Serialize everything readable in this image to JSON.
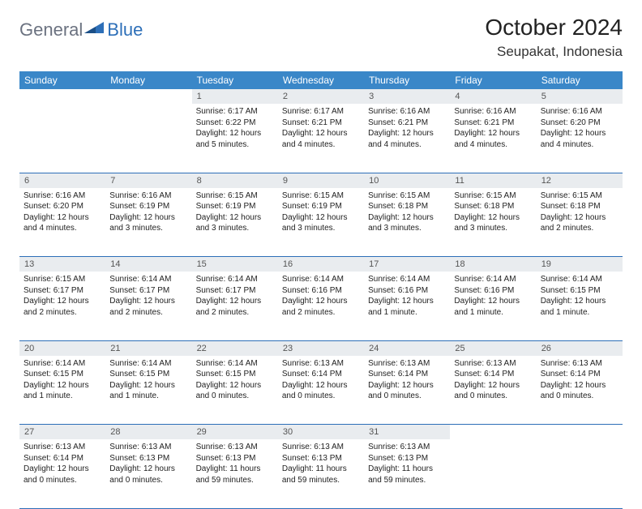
{
  "brand": {
    "part1": "General",
    "part2": "Blue"
  },
  "title": "October 2024",
  "location": "Seupakat, Indonesia",
  "colors": {
    "header_bg": "#3a87c8",
    "header_fg": "#ffffff",
    "daynum_bg": "#e9ecef",
    "rule": "#2d6fb8",
    "logo_gray": "#6b7280",
    "logo_blue": "#2d6fb8"
  },
  "weekdays": [
    "Sunday",
    "Monday",
    "Tuesday",
    "Wednesday",
    "Thursday",
    "Friday",
    "Saturday"
  ],
  "weeks": [
    [
      null,
      null,
      {
        "n": "1",
        "sr": "Sunrise: 6:17 AM",
        "ss": "Sunset: 6:22 PM",
        "d1": "Daylight: 12 hours",
        "d2": "and 5 minutes."
      },
      {
        "n": "2",
        "sr": "Sunrise: 6:17 AM",
        "ss": "Sunset: 6:21 PM",
        "d1": "Daylight: 12 hours",
        "d2": "and 4 minutes."
      },
      {
        "n": "3",
        "sr": "Sunrise: 6:16 AM",
        "ss": "Sunset: 6:21 PM",
        "d1": "Daylight: 12 hours",
        "d2": "and 4 minutes."
      },
      {
        "n": "4",
        "sr": "Sunrise: 6:16 AM",
        "ss": "Sunset: 6:21 PM",
        "d1": "Daylight: 12 hours",
        "d2": "and 4 minutes."
      },
      {
        "n": "5",
        "sr": "Sunrise: 6:16 AM",
        "ss": "Sunset: 6:20 PM",
        "d1": "Daylight: 12 hours",
        "d2": "and 4 minutes."
      }
    ],
    [
      {
        "n": "6",
        "sr": "Sunrise: 6:16 AM",
        "ss": "Sunset: 6:20 PM",
        "d1": "Daylight: 12 hours",
        "d2": "and 4 minutes."
      },
      {
        "n": "7",
        "sr": "Sunrise: 6:16 AM",
        "ss": "Sunset: 6:19 PM",
        "d1": "Daylight: 12 hours",
        "d2": "and 3 minutes."
      },
      {
        "n": "8",
        "sr": "Sunrise: 6:15 AM",
        "ss": "Sunset: 6:19 PM",
        "d1": "Daylight: 12 hours",
        "d2": "and 3 minutes."
      },
      {
        "n": "9",
        "sr": "Sunrise: 6:15 AM",
        "ss": "Sunset: 6:19 PM",
        "d1": "Daylight: 12 hours",
        "d2": "and 3 minutes."
      },
      {
        "n": "10",
        "sr": "Sunrise: 6:15 AM",
        "ss": "Sunset: 6:18 PM",
        "d1": "Daylight: 12 hours",
        "d2": "and 3 minutes."
      },
      {
        "n": "11",
        "sr": "Sunrise: 6:15 AM",
        "ss": "Sunset: 6:18 PM",
        "d1": "Daylight: 12 hours",
        "d2": "and 3 minutes."
      },
      {
        "n": "12",
        "sr": "Sunrise: 6:15 AM",
        "ss": "Sunset: 6:18 PM",
        "d1": "Daylight: 12 hours",
        "d2": "and 2 minutes."
      }
    ],
    [
      {
        "n": "13",
        "sr": "Sunrise: 6:15 AM",
        "ss": "Sunset: 6:17 PM",
        "d1": "Daylight: 12 hours",
        "d2": "and 2 minutes."
      },
      {
        "n": "14",
        "sr": "Sunrise: 6:14 AM",
        "ss": "Sunset: 6:17 PM",
        "d1": "Daylight: 12 hours",
        "d2": "and 2 minutes."
      },
      {
        "n": "15",
        "sr": "Sunrise: 6:14 AM",
        "ss": "Sunset: 6:17 PM",
        "d1": "Daylight: 12 hours",
        "d2": "and 2 minutes."
      },
      {
        "n": "16",
        "sr": "Sunrise: 6:14 AM",
        "ss": "Sunset: 6:16 PM",
        "d1": "Daylight: 12 hours",
        "d2": "and 2 minutes."
      },
      {
        "n": "17",
        "sr": "Sunrise: 6:14 AM",
        "ss": "Sunset: 6:16 PM",
        "d1": "Daylight: 12 hours",
        "d2": "and 1 minute."
      },
      {
        "n": "18",
        "sr": "Sunrise: 6:14 AM",
        "ss": "Sunset: 6:16 PM",
        "d1": "Daylight: 12 hours",
        "d2": "and 1 minute."
      },
      {
        "n": "19",
        "sr": "Sunrise: 6:14 AM",
        "ss": "Sunset: 6:15 PM",
        "d1": "Daylight: 12 hours",
        "d2": "and 1 minute."
      }
    ],
    [
      {
        "n": "20",
        "sr": "Sunrise: 6:14 AM",
        "ss": "Sunset: 6:15 PM",
        "d1": "Daylight: 12 hours",
        "d2": "and 1 minute."
      },
      {
        "n": "21",
        "sr": "Sunrise: 6:14 AM",
        "ss": "Sunset: 6:15 PM",
        "d1": "Daylight: 12 hours",
        "d2": "and 1 minute."
      },
      {
        "n": "22",
        "sr": "Sunrise: 6:14 AM",
        "ss": "Sunset: 6:15 PM",
        "d1": "Daylight: 12 hours",
        "d2": "and 0 minutes."
      },
      {
        "n": "23",
        "sr": "Sunrise: 6:13 AM",
        "ss": "Sunset: 6:14 PM",
        "d1": "Daylight: 12 hours",
        "d2": "and 0 minutes."
      },
      {
        "n": "24",
        "sr": "Sunrise: 6:13 AM",
        "ss": "Sunset: 6:14 PM",
        "d1": "Daylight: 12 hours",
        "d2": "and 0 minutes."
      },
      {
        "n": "25",
        "sr": "Sunrise: 6:13 AM",
        "ss": "Sunset: 6:14 PM",
        "d1": "Daylight: 12 hours",
        "d2": "and 0 minutes."
      },
      {
        "n": "26",
        "sr": "Sunrise: 6:13 AM",
        "ss": "Sunset: 6:14 PM",
        "d1": "Daylight: 12 hours",
        "d2": "and 0 minutes."
      }
    ],
    [
      {
        "n": "27",
        "sr": "Sunrise: 6:13 AM",
        "ss": "Sunset: 6:14 PM",
        "d1": "Daylight: 12 hours",
        "d2": "and 0 minutes."
      },
      {
        "n": "28",
        "sr": "Sunrise: 6:13 AM",
        "ss": "Sunset: 6:13 PM",
        "d1": "Daylight: 12 hours",
        "d2": "and 0 minutes."
      },
      {
        "n": "29",
        "sr": "Sunrise: 6:13 AM",
        "ss": "Sunset: 6:13 PM",
        "d1": "Daylight: 11 hours",
        "d2": "and 59 minutes."
      },
      {
        "n": "30",
        "sr": "Sunrise: 6:13 AM",
        "ss": "Sunset: 6:13 PM",
        "d1": "Daylight: 11 hours",
        "d2": "and 59 minutes."
      },
      {
        "n": "31",
        "sr": "Sunrise: 6:13 AM",
        "ss": "Sunset: 6:13 PM",
        "d1": "Daylight: 11 hours",
        "d2": "and 59 minutes."
      },
      null,
      null
    ]
  ]
}
